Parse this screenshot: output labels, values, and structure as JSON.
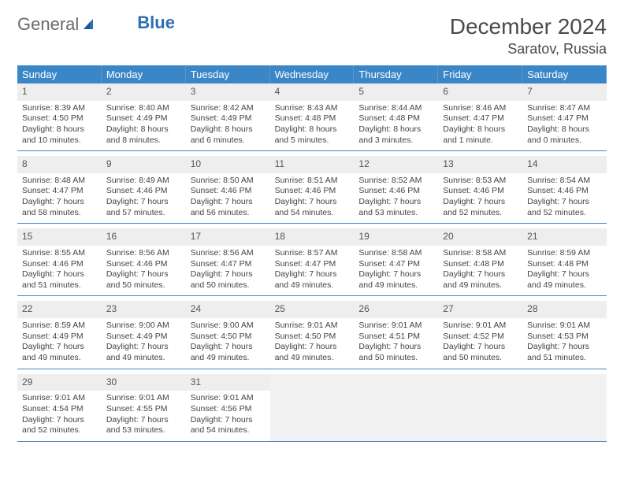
{
  "logo": {
    "part1": "General",
    "part2": "Blue"
  },
  "title": "December 2024",
  "location": "Saratov, Russia",
  "colors": {
    "header_bg": "#3b86c7",
    "daynum_bg": "#eeeeee",
    "border": "#3b86c7",
    "logo_gray": "#6b6b6b",
    "logo_blue": "#2d6fb2"
  },
  "dow": [
    "Sunday",
    "Monday",
    "Tuesday",
    "Wednesday",
    "Thursday",
    "Friday",
    "Saturday"
  ],
  "weeks": [
    [
      {
        "n": "1",
        "sr": "Sunrise: 8:39 AM",
        "ss": "Sunset: 4:50 PM",
        "d1": "Daylight: 8 hours",
        "d2": "and 10 minutes."
      },
      {
        "n": "2",
        "sr": "Sunrise: 8:40 AM",
        "ss": "Sunset: 4:49 PM",
        "d1": "Daylight: 8 hours",
        "d2": "and 8 minutes."
      },
      {
        "n": "3",
        "sr": "Sunrise: 8:42 AM",
        "ss": "Sunset: 4:49 PM",
        "d1": "Daylight: 8 hours",
        "d2": "and 6 minutes."
      },
      {
        "n": "4",
        "sr": "Sunrise: 8:43 AM",
        "ss": "Sunset: 4:48 PM",
        "d1": "Daylight: 8 hours",
        "d2": "and 5 minutes."
      },
      {
        "n": "5",
        "sr": "Sunrise: 8:44 AM",
        "ss": "Sunset: 4:48 PM",
        "d1": "Daylight: 8 hours",
        "d2": "and 3 minutes."
      },
      {
        "n": "6",
        "sr": "Sunrise: 8:46 AM",
        "ss": "Sunset: 4:47 PM",
        "d1": "Daylight: 8 hours",
        "d2": "and 1 minute."
      },
      {
        "n": "7",
        "sr": "Sunrise: 8:47 AM",
        "ss": "Sunset: 4:47 PM",
        "d1": "Daylight: 8 hours",
        "d2": "and 0 minutes."
      }
    ],
    [
      {
        "n": "8",
        "sr": "Sunrise: 8:48 AM",
        "ss": "Sunset: 4:47 PM",
        "d1": "Daylight: 7 hours",
        "d2": "and 58 minutes."
      },
      {
        "n": "9",
        "sr": "Sunrise: 8:49 AM",
        "ss": "Sunset: 4:46 PM",
        "d1": "Daylight: 7 hours",
        "d2": "and 57 minutes."
      },
      {
        "n": "10",
        "sr": "Sunrise: 8:50 AM",
        "ss": "Sunset: 4:46 PM",
        "d1": "Daylight: 7 hours",
        "d2": "and 56 minutes."
      },
      {
        "n": "11",
        "sr": "Sunrise: 8:51 AM",
        "ss": "Sunset: 4:46 PM",
        "d1": "Daylight: 7 hours",
        "d2": "and 54 minutes."
      },
      {
        "n": "12",
        "sr": "Sunrise: 8:52 AM",
        "ss": "Sunset: 4:46 PM",
        "d1": "Daylight: 7 hours",
        "d2": "and 53 minutes."
      },
      {
        "n": "13",
        "sr": "Sunrise: 8:53 AM",
        "ss": "Sunset: 4:46 PM",
        "d1": "Daylight: 7 hours",
        "d2": "and 52 minutes."
      },
      {
        "n": "14",
        "sr": "Sunrise: 8:54 AM",
        "ss": "Sunset: 4:46 PM",
        "d1": "Daylight: 7 hours",
        "d2": "and 52 minutes."
      }
    ],
    [
      {
        "n": "15",
        "sr": "Sunrise: 8:55 AM",
        "ss": "Sunset: 4:46 PM",
        "d1": "Daylight: 7 hours",
        "d2": "and 51 minutes."
      },
      {
        "n": "16",
        "sr": "Sunrise: 8:56 AM",
        "ss": "Sunset: 4:46 PM",
        "d1": "Daylight: 7 hours",
        "d2": "and 50 minutes."
      },
      {
        "n": "17",
        "sr": "Sunrise: 8:56 AM",
        "ss": "Sunset: 4:47 PM",
        "d1": "Daylight: 7 hours",
        "d2": "and 50 minutes."
      },
      {
        "n": "18",
        "sr": "Sunrise: 8:57 AM",
        "ss": "Sunset: 4:47 PM",
        "d1": "Daylight: 7 hours",
        "d2": "and 49 minutes."
      },
      {
        "n": "19",
        "sr": "Sunrise: 8:58 AM",
        "ss": "Sunset: 4:47 PM",
        "d1": "Daylight: 7 hours",
        "d2": "and 49 minutes."
      },
      {
        "n": "20",
        "sr": "Sunrise: 8:58 AM",
        "ss": "Sunset: 4:48 PM",
        "d1": "Daylight: 7 hours",
        "d2": "and 49 minutes."
      },
      {
        "n": "21",
        "sr": "Sunrise: 8:59 AM",
        "ss": "Sunset: 4:48 PM",
        "d1": "Daylight: 7 hours",
        "d2": "and 49 minutes."
      }
    ],
    [
      {
        "n": "22",
        "sr": "Sunrise: 8:59 AM",
        "ss": "Sunset: 4:49 PM",
        "d1": "Daylight: 7 hours",
        "d2": "and 49 minutes."
      },
      {
        "n": "23",
        "sr": "Sunrise: 9:00 AM",
        "ss": "Sunset: 4:49 PM",
        "d1": "Daylight: 7 hours",
        "d2": "and 49 minutes."
      },
      {
        "n": "24",
        "sr": "Sunrise: 9:00 AM",
        "ss": "Sunset: 4:50 PM",
        "d1": "Daylight: 7 hours",
        "d2": "and 49 minutes."
      },
      {
        "n": "25",
        "sr": "Sunrise: 9:01 AM",
        "ss": "Sunset: 4:50 PM",
        "d1": "Daylight: 7 hours",
        "d2": "and 49 minutes."
      },
      {
        "n": "26",
        "sr": "Sunrise: 9:01 AM",
        "ss": "Sunset: 4:51 PM",
        "d1": "Daylight: 7 hours",
        "d2": "and 50 minutes."
      },
      {
        "n": "27",
        "sr": "Sunrise: 9:01 AM",
        "ss": "Sunset: 4:52 PM",
        "d1": "Daylight: 7 hours",
        "d2": "and 50 minutes."
      },
      {
        "n": "28",
        "sr": "Sunrise: 9:01 AM",
        "ss": "Sunset: 4:53 PM",
        "d1": "Daylight: 7 hours",
        "d2": "and 51 minutes."
      }
    ],
    [
      {
        "n": "29",
        "sr": "Sunrise: 9:01 AM",
        "ss": "Sunset: 4:54 PM",
        "d1": "Daylight: 7 hours",
        "d2": "and 52 minutes."
      },
      {
        "n": "30",
        "sr": "Sunrise: 9:01 AM",
        "ss": "Sunset: 4:55 PM",
        "d1": "Daylight: 7 hours",
        "d2": "and 53 minutes."
      },
      {
        "n": "31",
        "sr": "Sunrise: 9:01 AM",
        "ss": "Sunset: 4:56 PM",
        "d1": "Daylight: 7 hours",
        "d2": "and 54 minutes."
      },
      null,
      null,
      null,
      null
    ]
  ]
}
